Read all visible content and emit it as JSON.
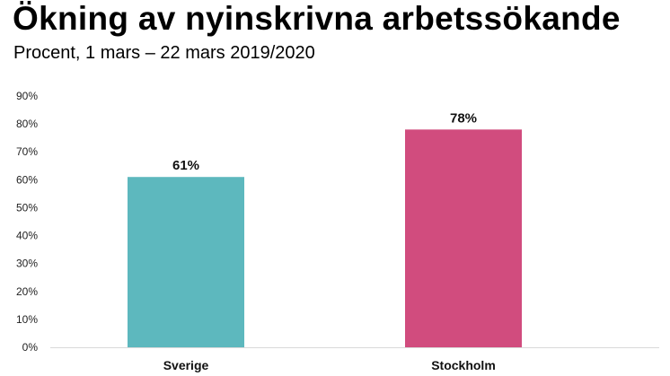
{
  "header": {
    "title": "Ökning av nyinskrivna arbetssökande",
    "subtitle": "Procent, 1 mars – 22 mars 2019/2020"
  },
  "chart_data": {
    "type": "bar",
    "title": "Ökning av nyinskrivna arbetssökande",
    "subtitle": "Procent, 1 mars – 22 mars 2019/2020",
    "categories": [
      "Sverige",
      "Stockholm"
    ],
    "values": [
      61,
      78
    ],
    "data_labels": [
      "61%",
      "78%"
    ],
    "colors": [
      "#5db8be",
      "#d14c7e"
    ],
    "xlabel": "",
    "ylabel": "",
    "ylim": [
      0,
      90
    ],
    "yticks": [
      0,
      10,
      20,
      30,
      40,
      50,
      60,
      70,
      80,
      90
    ],
    "ytick_labels": [
      "0%",
      "10%",
      "20%",
      "30%",
      "40%",
      "50%",
      "60%",
      "70%",
      "80%",
      "90%"
    ],
    "grid": false,
    "legend": "none"
  }
}
